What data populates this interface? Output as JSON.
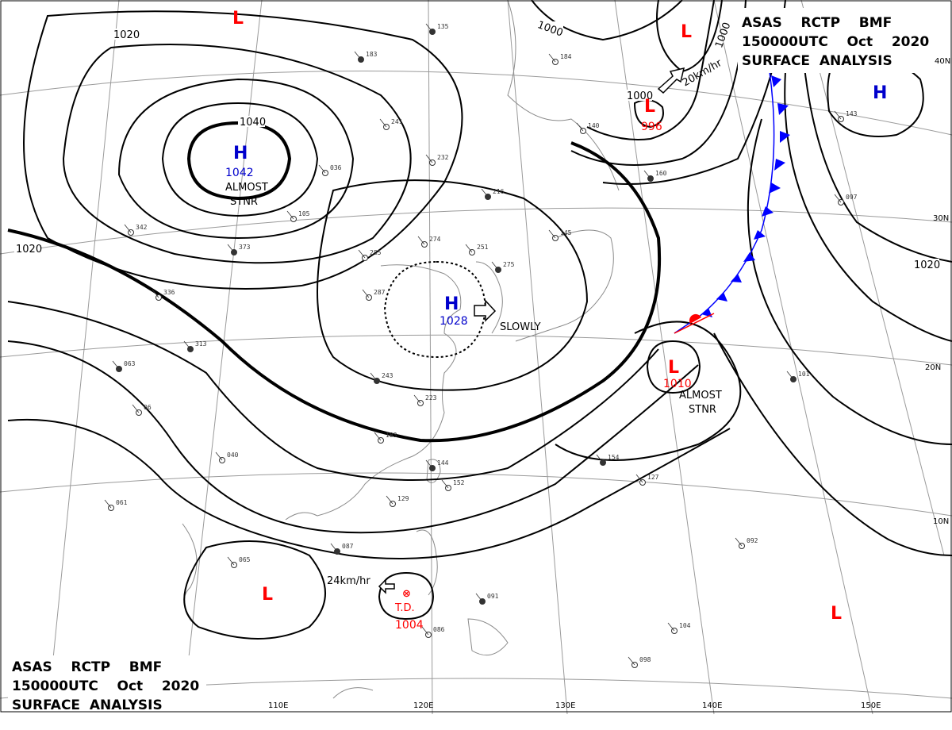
{
  "header_top": {
    "line1": "ASAS    RCTP    BMF",
    "line2": "150000UTC    Oct    2020",
    "line3": "SURFACE  ANALYSIS"
  },
  "header_bottom": {
    "line1": "ASAS    RCTP    BMF",
    "line2": "150000UTC    Oct    2020",
    "line3": "SURFACE  ANALYSIS"
  },
  "isobar_labels": [
    "1020",
    "1040",
    "1000",
    "1000",
    "1000",
    "1020",
    "1020"
  ],
  "pressure_centers": [
    {
      "type": "H",
      "value": "1042",
      "note": "ALMOST",
      "note2": "STNR",
      "color": "#0000cc",
      "value_color": "#0000cc"
    },
    {
      "type": "H",
      "value": "1028",
      "note": "SLOWLY",
      "color": "#0000cc",
      "value_color": "#0000cc"
    },
    {
      "type": "L",
      "value": "996",
      "color": "#ff0000",
      "value_color": "#ff0000"
    },
    {
      "type": "L",
      "value": "1010",
      "note": "ALMOST",
      "note2": "STNR",
      "color": "#ff0000",
      "value_color": "#ff0000"
    },
    {
      "type": "TD",
      "value": "1004",
      "tag": "T.D.",
      "color": "#ff0000",
      "value_color": "#ff0000"
    },
    {
      "type": "L",
      "color": "#ff0000"
    },
    {
      "type": "L",
      "color": "#ff0000"
    },
    {
      "type": "L",
      "color": "#ff0000"
    },
    {
      "type": "H",
      "color": "#0000cc"
    }
  ],
  "motion_labels": [
    "20km/hr",
    "24km/hr"
  ],
  "lat_labels": [
    "30N",
    "20N",
    "10N"
  ],
  "lon_labels": [
    "110E",
    "120E",
    "130E",
    "140E",
    "150E"
  ],
  "station_samples": [
    "183",
    "241",
    "232",
    "216",
    "274",
    "251",
    "275",
    "285",
    "287",
    "243",
    "223",
    "183",
    "144",
    "152",
    "129",
    "087",
    "065",
    "086",
    "063",
    "061",
    "06",
    "154",
    "127",
    "092",
    "091",
    "104",
    "098",
    "101",
    "097",
    "143",
    "160",
    "140",
    "184",
    "135",
    "036",
    "105",
    "373",
    "342",
    "336",
    "313",
    "145",
    "040"
  ],
  "colors": {
    "isobar": "#000000",
    "grid": "#9a9a9a",
    "coast": "#8a8a8a",
    "cold_front": "#0000ff",
    "warm_front": "#ff0000",
    "high": "#0000cc",
    "low": "#ff0000"
  }
}
